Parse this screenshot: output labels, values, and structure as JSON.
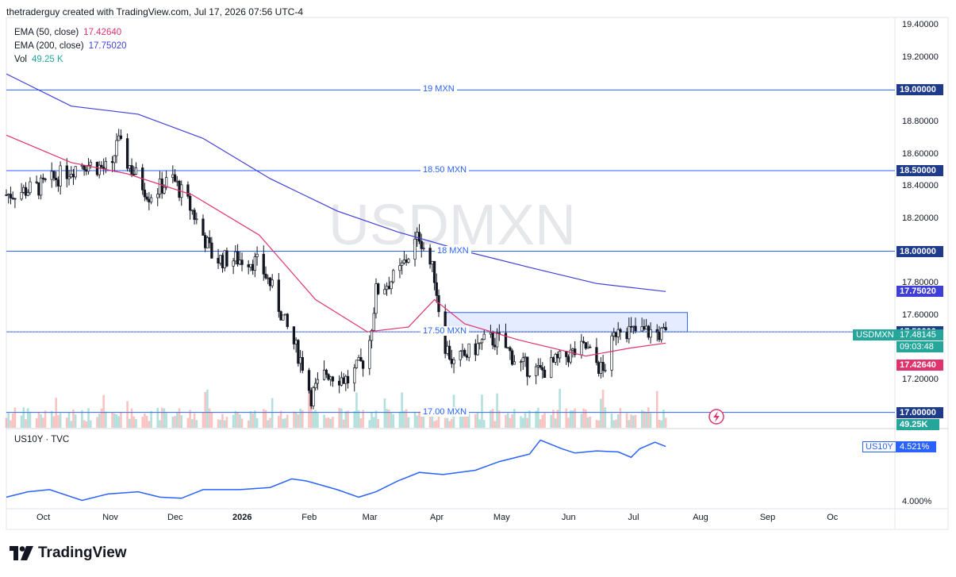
{
  "header": {
    "credit": "thetraderguy created with TradingView.com, Jul 17, 2026 07:56 UTC-4"
  },
  "legend": {
    "ema50": {
      "label": "EMA (50, close)",
      "value": "17.42640",
      "color": "#e0336b"
    },
    "ema200": {
      "label": "EMA (200, close)",
      "value": "17.75020",
      "color": "#3f3fd8"
    },
    "vol": {
      "label": "Vol",
      "value": "49.25 K",
      "color": "#26a69a"
    }
  },
  "watermark": "USDMXN",
  "price_axis": {
    "ticks": [
      "19.40000",
      "19.20000",
      "18.80000",
      "18.60000",
      "18.40000",
      "18.20000",
      "17.80000",
      "17.60000",
      "17.20000"
    ],
    "badges": {
      "level_19": "19.00000",
      "level_1850": "18.50000",
      "level_18": "18.00000",
      "ema200": "17.75020",
      "level_1750": "17.50000",
      "symbol": "USDMXN",
      "price": "17.48145",
      "countdown": "09:03:48",
      "ema50": "17.42640",
      "level_17": "17.00000",
      "volume": "49.25K"
    }
  },
  "level_labels": {
    "l19": "19 MXN",
    "l1850": "18.50 MXN",
    "l18": "18 MXN",
    "l1750": "17.50 MXN",
    "l17": "17.00 MXN"
  },
  "lower_pane": {
    "title": "US10Y · TVC",
    "badge_name": "US10Y",
    "badge_value": "4.521%",
    "tick": "4.000%"
  },
  "time_axis": [
    "Oct",
    "Nov",
    "Dec",
    "2026",
    "Feb",
    "Mar",
    "Apr",
    "May",
    "Jun",
    "Jul",
    "Aug",
    "Sep",
    "Oc"
  ],
  "brand": "TradingView",
  "colors": {
    "up": "#26a69a",
    "down": "#ef5350",
    "candle": "#131722",
    "hline": "#2962ff",
    "ema50": "#e0336b",
    "ema200": "#3f3fd8",
    "box": "#2962ff"
  },
  "chart_data": [
    {
      "type": "candlestick",
      "symbol": "USDMXN",
      "ylim": [
        16.9,
        19.45
      ],
      "x_range": [
        "2025-09-15",
        "2026-10-31"
      ],
      "horizontal_levels": [
        19.0,
        18.5,
        18.0,
        17.5,
        17.0
      ],
      "zone": {
        "from": "2026-04-06",
        "to": "2026-07-27",
        "low": 17.5,
        "high": 17.62
      },
      "close_series": [
        [
          "2025-09-15",
          18.35
        ],
        [
          "2025-10-01",
          18.4
        ],
        [
          "2025-10-20",
          18.55
        ],
        [
          "2025-11-03",
          18.5
        ],
        [
          "2025-11-05",
          18.7
        ],
        [
          "2025-11-10",
          18.55
        ],
        [
          "2025-11-20",
          18.35
        ],
        [
          "2025-12-01",
          18.45
        ],
        [
          "2025-12-10",
          18.25
        ],
        [
          "2025-12-20",
          17.95
        ],
        [
          "2026-01-05",
          17.95
        ],
        [
          "2026-01-10",
          17.92
        ],
        [
          "2026-01-15",
          17.8
        ],
        [
          "2026-01-22",
          17.55
        ],
        [
          "2026-01-30",
          17.3
        ],
        [
          "2026-02-03",
          17.1
        ],
        [
          "2026-02-10",
          17.25
        ],
        [
          "2026-02-20",
          17.2
        ],
        [
          "2026-03-01",
          17.35
        ],
        [
          "2026-03-05",
          17.75
        ],
        [
          "2026-03-15",
          17.85
        ],
        [
          "2026-03-25",
          18.1
        ],
        [
          "2026-04-01",
          17.85
        ],
        [
          "2026-04-05",
          17.45
        ],
        [
          "2026-04-10",
          17.3
        ],
        [
          "2026-04-25",
          17.45
        ],
        [
          "2026-05-01",
          17.45
        ],
        [
          "2026-05-10",
          17.3
        ],
        [
          "2026-05-20",
          17.25
        ],
        [
          "2026-06-01",
          17.35
        ],
        [
          "2026-06-10",
          17.4
        ],
        [
          "2026-06-18",
          17.25
        ],
        [
          "2026-06-25",
          17.55
        ],
        [
          "2026-07-01",
          17.5
        ],
        [
          "2026-07-10",
          17.5
        ],
        [
          "2026-07-17",
          17.48
        ]
      ],
      "ema50": [
        [
          "2025-09-15",
          18.72
        ],
        [
          "2025-10-15",
          18.55
        ],
        [
          "2025-11-10",
          18.48
        ],
        [
          "2025-12-10",
          18.35
        ],
        [
          "2026-01-10",
          18.1
        ],
        [
          "2026-02-05",
          17.7
        ],
        [
          "2026-03-01",
          17.5
        ],
        [
          "2026-03-20",
          17.53
        ],
        [
          "2026-04-01",
          17.7
        ],
        [
          "2026-04-15",
          17.55
        ],
        [
          "2026-05-10",
          17.45
        ],
        [
          "2026-06-10",
          17.35
        ],
        [
          "2026-07-01",
          17.4
        ],
        [
          "2026-07-17",
          17.43
        ]
      ],
      "ema200": [
        [
          "2025-09-15",
          19.1
        ],
        [
          "2025-10-15",
          18.9
        ],
        [
          "2025-11-15",
          18.85
        ],
        [
          "2025-12-15",
          18.7
        ],
        [
          "2026-01-15",
          18.45
        ],
        [
          "2026-02-15",
          18.25
        ],
        [
          "2026-03-15",
          18.12
        ],
        [
          "2026-04-15",
          18.0
        ],
        [
          "2026-05-15",
          17.9
        ],
        [
          "2026-06-15",
          17.8
        ],
        [
          "2026-07-17",
          17.75
        ]
      ]
    },
    {
      "type": "line",
      "name": "US10Y",
      "ylim": [
        3.95,
        4.65
      ],
      "series": [
        [
          "2025-09-15",
          4.05
        ],
        [
          "2025-09-25",
          4.1
        ],
        [
          "2025-10-05",
          4.12
        ],
        [
          "2025-10-20",
          4.02
        ],
        [
          "2025-11-01",
          4.08
        ],
        [
          "2025-11-15",
          4.1
        ],
        [
          "2025-11-25",
          4.05
        ],
        [
          "2025-12-05",
          4.04
        ],
        [
          "2025-12-15",
          4.12
        ],
        [
          "2026-01-01",
          4.12
        ],
        [
          "2026-01-15",
          4.14
        ],
        [
          "2026-01-25",
          4.22
        ],
        [
          "2026-02-01",
          4.2
        ],
        [
          "2026-02-15",
          4.12
        ],
        [
          "2026-02-25",
          4.05
        ],
        [
          "2026-03-05",
          4.1
        ],
        [
          "2026-03-15",
          4.2
        ],
        [
          "2026-03-25",
          4.28
        ],
        [
          "2026-04-05",
          4.26
        ],
        [
          "2026-04-20",
          4.3
        ],
        [
          "2026-05-01",
          4.38
        ],
        [
          "2026-05-15",
          4.45
        ],
        [
          "2026-05-20",
          4.58
        ],
        [
          "2026-05-30",
          4.5
        ],
        [
          "2026-06-05",
          4.46
        ],
        [
          "2026-06-15",
          4.48
        ],
        [
          "2026-06-25",
          4.47
        ],
        [
          "2026-07-01",
          4.42
        ],
        [
          "2026-07-05",
          4.5
        ],
        [
          "2026-07-12",
          4.56
        ],
        [
          "2026-07-17",
          4.52
        ]
      ]
    }
  ]
}
